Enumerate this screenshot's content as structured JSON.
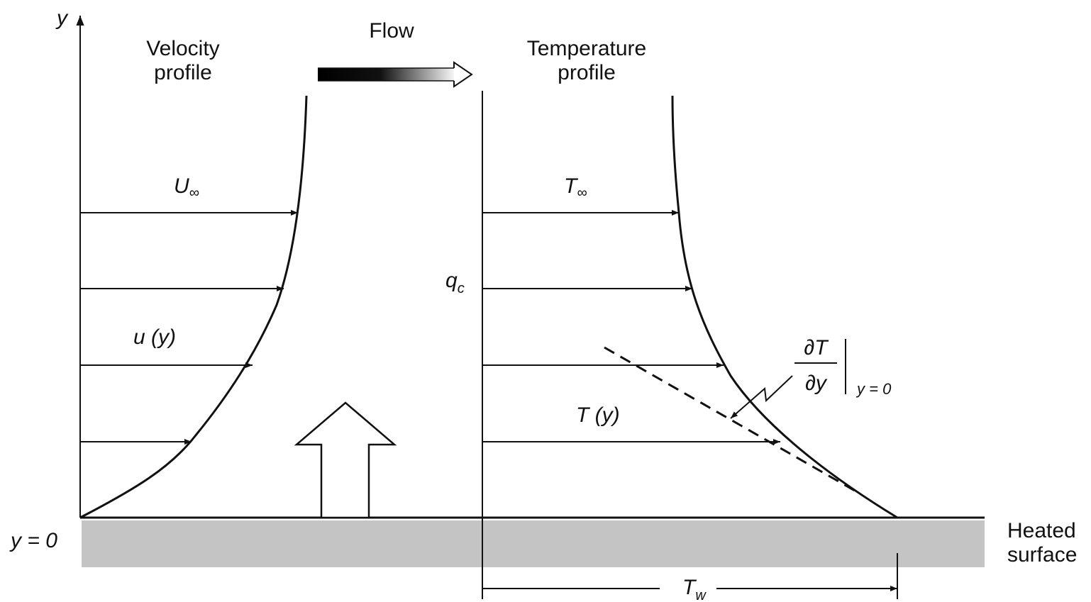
{
  "axis_label": "y",
  "flow_label": "Flow",
  "velocity_profile": [
    "Velocity",
    "profile"
  ],
  "temperature_profile": [
    "Temperature",
    "profile"
  ],
  "u_inf": {
    "base": "U",
    "sub": "∞"
  },
  "u_y": "u (y)",
  "t_inf": {
    "base": "T",
    "sub": "∞"
  },
  "q_c": {
    "base": "q",
    "sub": "c"
  },
  "t_y": "T (y)",
  "gradient": {
    "numerator": "∂T",
    "denominator": "∂y",
    "condition": "y = 0"
  },
  "wall_label": "y = 0",
  "surface_label": [
    "Heated",
    "surface"
  ],
  "t_w": {
    "base": "T",
    "sub": "w"
  }
}
